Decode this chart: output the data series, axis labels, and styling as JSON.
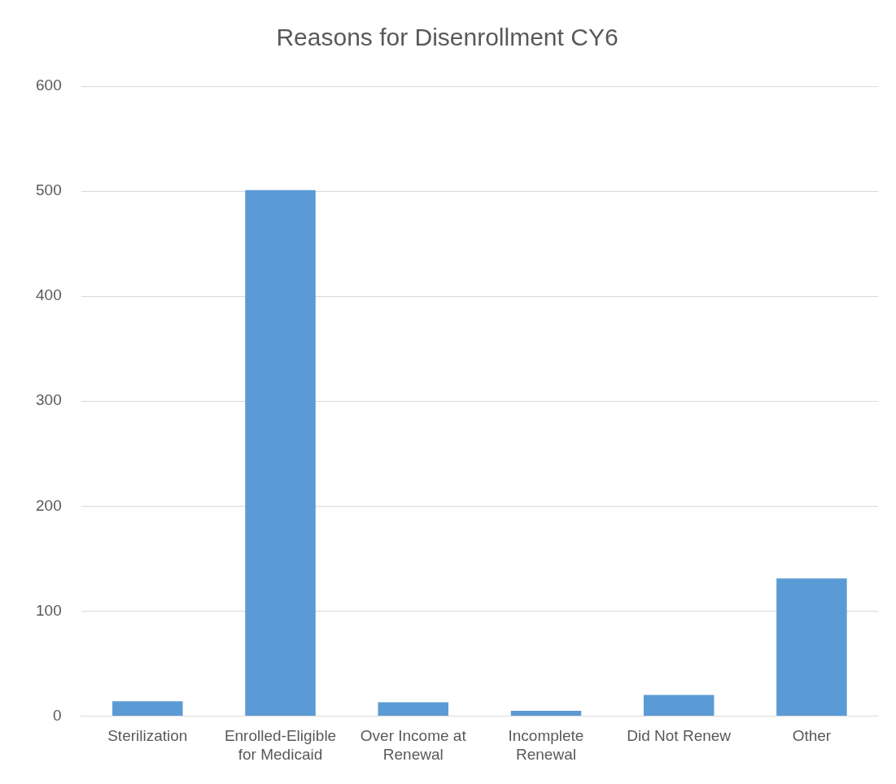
{
  "chart_data": {
    "type": "bar",
    "title": "Reasons for Disenrollment CY6",
    "categories": [
      "Sterilization",
      "Enrolled-Eligible for Medicaid",
      "Over Income at Renewal",
      "Incomplete Renewal",
      "Did Not Renew",
      "Other"
    ],
    "values": [
      14,
      501,
      13,
      5,
      20,
      131
    ],
    "color": "#5b9bd5",
    "ylim": [
      0,
      600
    ],
    "yticks": [
      0,
      100,
      200,
      300,
      400,
      500,
      600
    ],
    "grid": "y",
    "legend": false
  }
}
